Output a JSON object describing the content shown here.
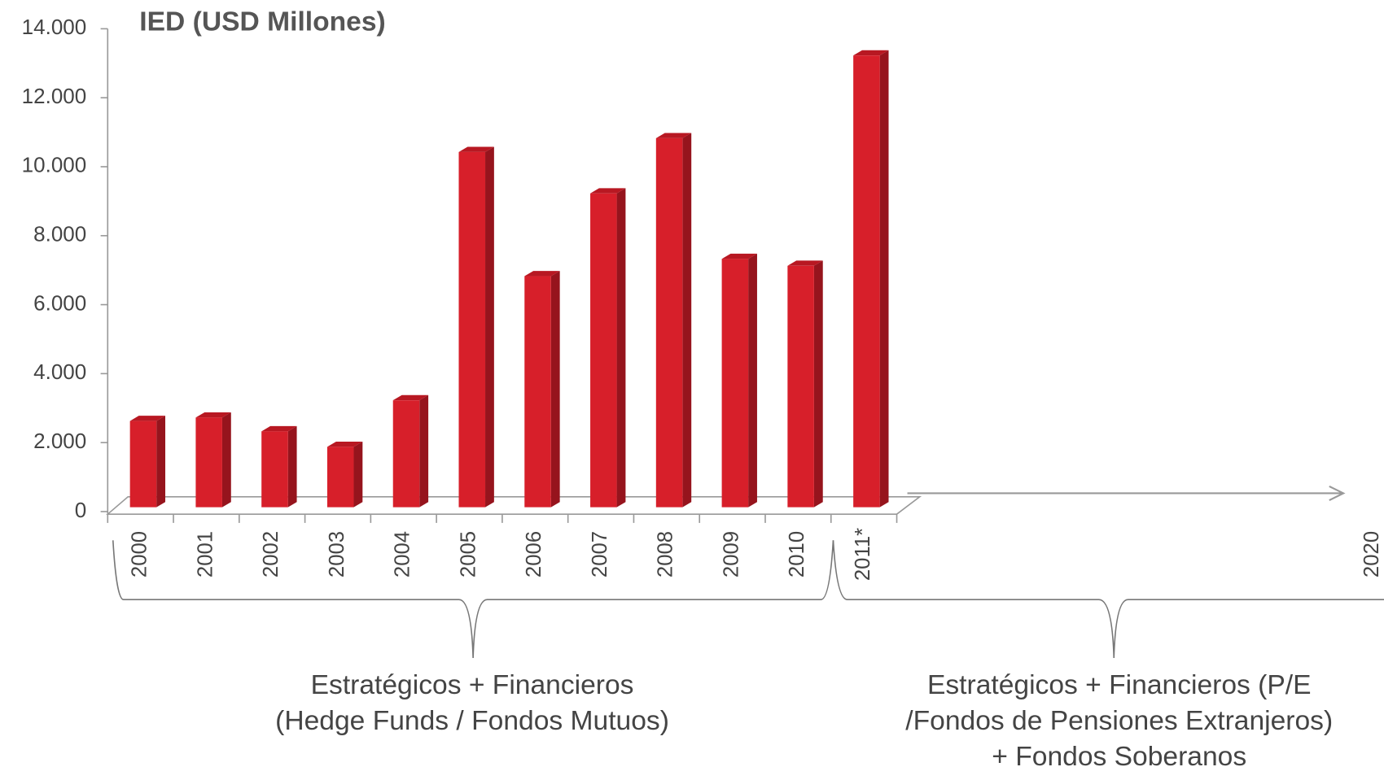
{
  "chart_data": {
    "type": "bar",
    "title": "IED (USD Millones)",
    "categories": [
      "2000",
      "2001",
      "2002",
      "2003",
      "2004",
      "2005",
      "2006",
      "2007",
      "2008",
      "2009",
      "2010",
      "2011*"
    ],
    "values": [
      2500,
      2600,
      2200,
      1750,
      3100,
      10300,
      6700,
      9100,
      10700,
      7200,
      7000,
      13100
    ],
    "color": "#d71f2a",
    "ylim": [
      0,
      14000
    ],
    "yticks": [
      0,
      {
        "value": 2000,
        "label": "2.000"
      },
      {
        "value": 4000,
        "label": "4.000"
      },
      {
        "value": 6000,
        "label": "6.000"
      },
      {
        "value": 8000,
        "label": "8.000"
      },
      {
        "value": 10000,
        "label": "10.000"
      },
      {
        "value": 12000,
        "label": "12.000"
      },
      {
        "value": 14000,
        "label": "14.000"
      }
    ],
    "grid": false,
    "extended_axis_label": "2020",
    "groups": [
      {
        "lines": [
          "Estratégicos + Financieros",
          "(Hedge Funds / Fondos Mutuos)"
        ]
      },
      {
        "lines": [
          "Estratégicos + Financieros (P/E",
          "/Fondos de Pensiones Extranjeros)",
          "+ Fondos Soberanos"
        ]
      }
    ]
  }
}
